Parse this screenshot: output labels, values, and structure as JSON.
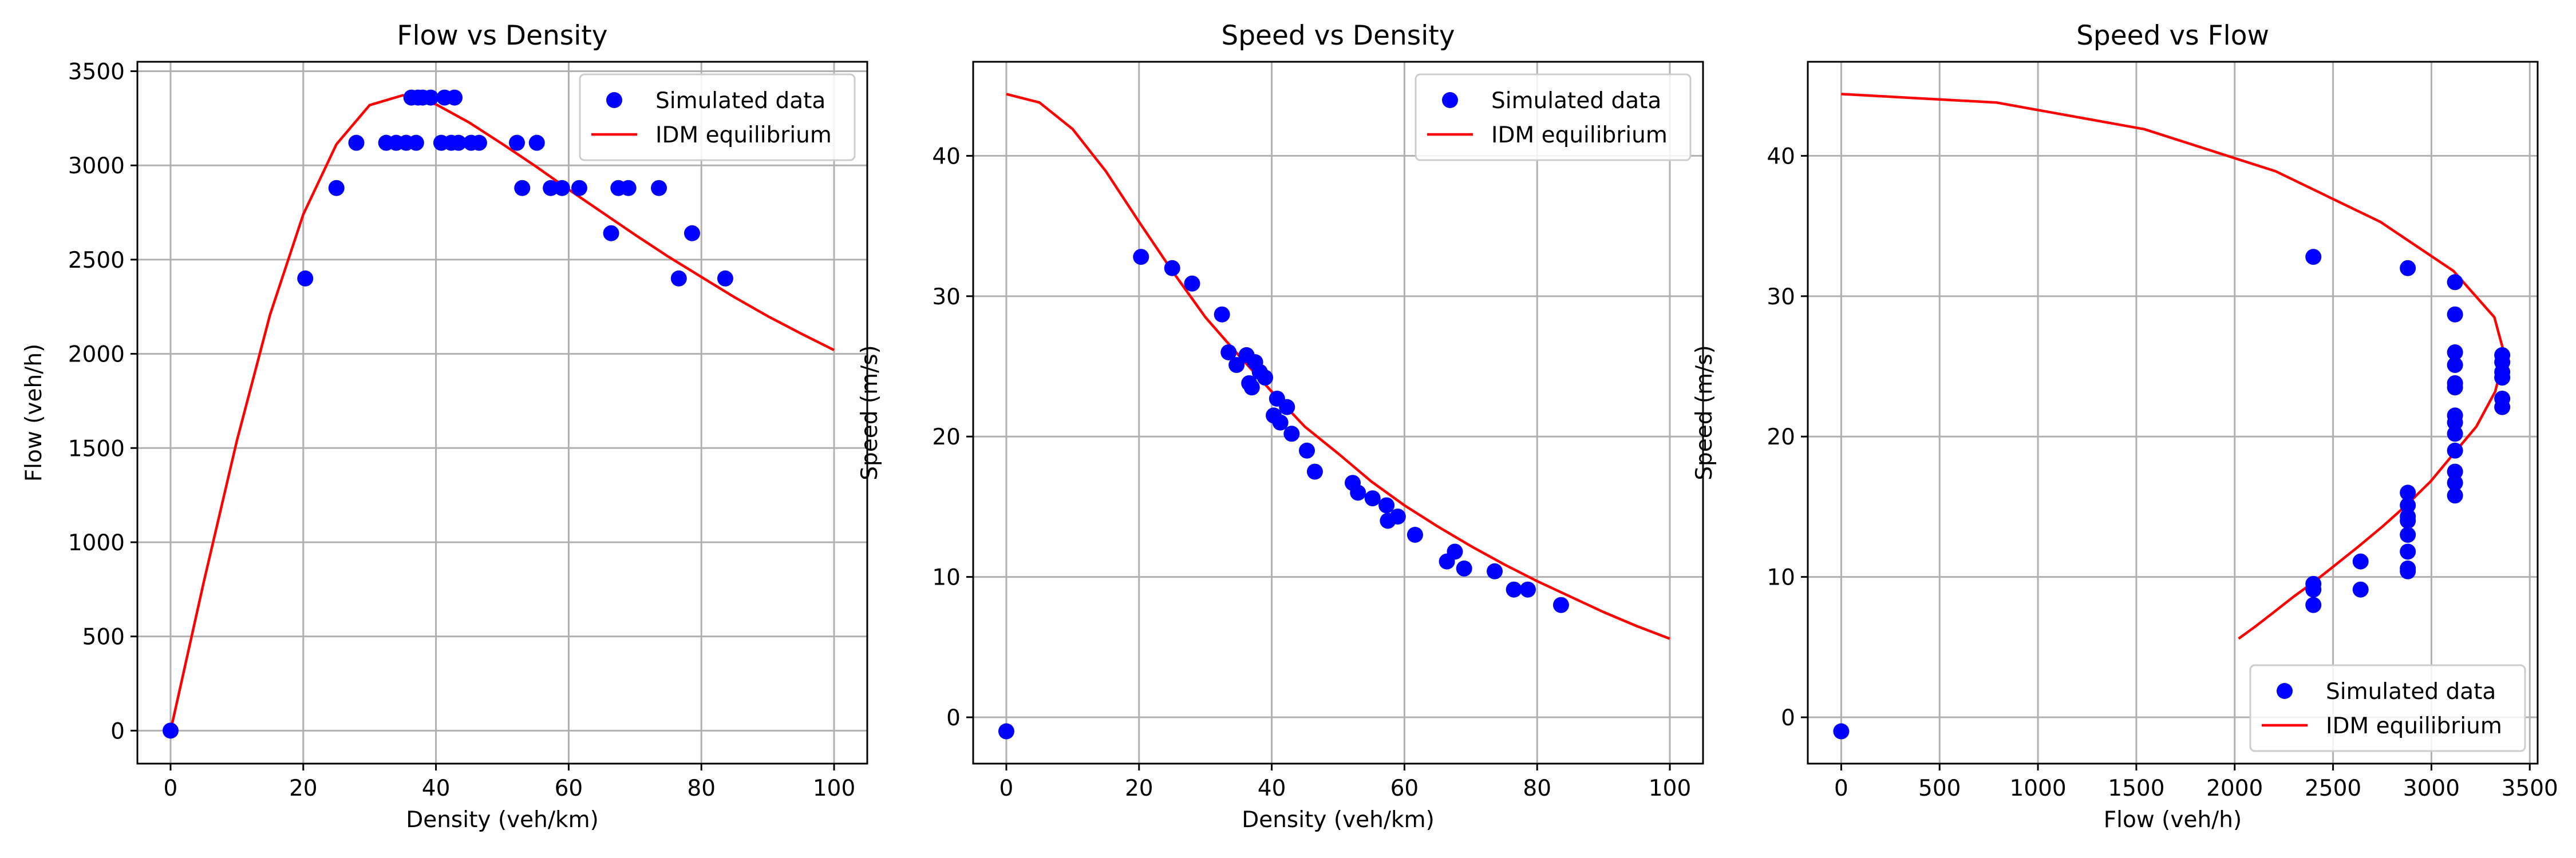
{
  "colors": {
    "scatter": "#0000ff",
    "curve": "#ff0000",
    "grid": "#b0b0b0",
    "legend_border": "#cccccc"
  },
  "chart_data": [
    {
      "type": "scatter",
      "title": "Flow vs Density",
      "xlabel": "Density (veh/km)",
      "ylabel": "Flow (veh/h)",
      "xlim": [
        -5,
        105
      ],
      "ylim": [
        -175,
        3550
      ],
      "xticks": [
        0,
        20,
        40,
        60,
        80,
        100
      ],
      "yticks": [
        0,
        500,
        1000,
        1500,
        2000,
        2500,
        3000,
        3500
      ],
      "grid": true,
      "legend_position": "upper right",
      "series": [
        {
          "name": "Simulated data",
          "kind": "scatter",
          "points": [
            [
              0,
              0
            ],
            [
              20.3,
              2400
            ],
            [
              25,
              2880
            ],
            [
              28,
              3120
            ],
            [
              32.5,
              3120
            ],
            [
              34,
              3120
            ],
            [
              35.5,
              3120
            ],
            [
              36.3,
              3360
            ],
            [
              37,
              3120
            ],
            [
              37.3,
              3360
            ],
            [
              38,
              3360
            ],
            [
              39.2,
              3360
            ],
            [
              40.8,
              3120
            ],
            [
              41.3,
              3360
            ],
            [
              42.3,
              3120
            ],
            [
              42.8,
              3360
            ],
            [
              43.4,
              3120
            ],
            [
              45.3,
              3120
            ],
            [
              46.5,
              3120
            ],
            [
              52.2,
              3120
            ],
            [
              53,
              2880
            ],
            [
              55.2,
              3120
            ],
            [
              57.3,
              2880
            ],
            [
              59,
              2880
            ],
            [
              61.6,
              2880
            ],
            [
              66.4,
              2640
            ],
            [
              67.5,
              2880
            ],
            [
              69,
              2880
            ],
            [
              73.6,
              2880
            ],
            [
              76.6,
              2400
            ],
            [
              78.6,
              2640
            ],
            [
              83.6,
              2400
            ]
          ]
        },
        {
          "name": "IDM equilibrium",
          "kind": "line",
          "points": [
            [
              0,
              0
            ],
            [
              5,
              788
            ],
            [
              10,
              1540
            ],
            [
              15,
              2208
            ],
            [
              20,
              2740
            ],
            [
              25,
              3112
            ],
            [
              30,
              3320
            ],
            [
              35,
              3372
            ],
            [
              40,
              3324
            ],
            [
              45,
              3228
            ],
            [
              50,
              3114
            ],
            [
              55,
              2996
            ],
            [
              60,
              2872
            ],
            [
              65,
              2752
            ],
            [
              70,
              2632
            ],
            [
              75,
              2516
            ],
            [
              80,
              2408
            ],
            [
              85,
              2300
            ],
            [
              90,
              2200
            ],
            [
              95,
              2108
            ],
            [
              100,
              2020
            ]
          ]
        }
      ]
    },
    {
      "type": "scatter",
      "title": "Speed vs Density",
      "xlabel": "Density (veh/km)",
      "ylabel": "Speed (m/s)",
      "xlim": [
        -5,
        105
      ],
      "ylim": [
        -3.3,
        46.7
      ],
      "xticks": [
        0,
        20,
        40,
        60,
        80,
        100
      ],
      "yticks": [
        0,
        10,
        20,
        30,
        40
      ],
      "grid": true,
      "legend_position": "upper right",
      "series": [
        {
          "name": "Simulated data",
          "kind": "scatter",
          "points": [
            [
              0,
              -1
            ],
            [
              20.3,
              32.8
            ],
            [
              25,
              32
            ],
            [
              28,
              30.9
            ],
            [
              32.5,
              28.7
            ],
            [
              33.5,
              26
            ],
            [
              34.7,
              25.1
            ],
            [
              36.2,
              25.8
            ],
            [
              36.6,
              23.8
            ],
            [
              37,
              23.5
            ],
            [
              37.5,
              25.3
            ],
            [
              38.2,
              24.6
            ],
            [
              39,
              24.2
            ],
            [
              40.3,
              21.5
            ],
            [
              40.8,
              22.7
            ],
            [
              41.3,
              21
            ],
            [
              42.3,
              22.1
            ],
            [
              43,
              20.2
            ],
            [
              45.3,
              19
            ],
            [
              46.5,
              17.5
            ],
            [
              52.2,
              16.7
            ],
            [
              53,
              16
            ],
            [
              55.2,
              15.6
            ],
            [
              57.3,
              15.1
            ],
            [
              57.5,
              14
            ],
            [
              59,
              14.3
            ],
            [
              61.6,
              13
            ],
            [
              66.4,
              11.1
            ],
            [
              67.6,
              11.8
            ],
            [
              69,
              10.6
            ],
            [
              73.6,
              10.4
            ],
            [
              76.5,
              9.1
            ],
            [
              78.6,
              9.1
            ],
            [
              83.6,
              8
            ]
          ]
        },
        {
          "name": "IDM equilibrium",
          "kind": "line",
          "points": [
            [
              0,
              44.4
            ],
            [
              5,
              43.8
            ],
            [
              10,
              41.9
            ],
            [
              15,
              38.9
            ],
            [
              20,
              35.3
            ],
            [
              25,
              31.8
            ],
            [
              30,
              28.5
            ],
            [
              35,
              25.8
            ],
            [
              40,
              23.2
            ],
            [
              45,
              20.7
            ],
            [
              50,
              18.8
            ],
            [
              55,
              16.8
            ],
            [
              60,
              15.1
            ],
            [
              65,
              13.6
            ],
            [
              70,
              12.2
            ],
            [
              75,
              10.9
            ],
            [
              80,
              9.7
            ],
            [
              85,
              8.6
            ],
            [
              90,
              7.5
            ],
            [
              95,
              6.5
            ],
            [
              100,
              5.6
            ]
          ]
        }
      ]
    },
    {
      "type": "scatter",
      "title": "Speed vs Flow",
      "xlabel": "Flow (veh/h)",
      "ylabel": "Speed (m/s)",
      "xlim": [
        -170,
        3540
      ],
      "ylim": [
        -3.3,
        46.7
      ],
      "xticks": [
        0,
        500,
        1000,
        1500,
        2000,
        2500,
        3000,
        3500
      ],
      "yticks": [
        0,
        10,
        20,
        30,
        40
      ],
      "grid": true,
      "legend_position": "lower right",
      "series": [
        {
          "name": "Simulated data",
          "kind": "scatter",
          "points": [
            [
              0,
              -1
            ],
            [
              2400,
              32.8
            ],
            [
              2400,
              9.5
            ],
            [
              2400,
              9.1
            ],
            [
              2400,
              8
            ],
            [
              2640,
              11.1
            ],
            [
              2640,
              9.1
            ],
            [
              2880,
              32
            ],
            [
              2880,
              16
            ],
            [
              2880,
              15.1
            ],
            [
              2880,
              14.3
            ],
            [
              2880,
              14
            ],
            [
              2880,
              13
            ],
            [
              2880,
              11.8
            ],
            [
              2880,
              10.6
            ],
            [
              2880,
              10.4
            ],
            [
              3120,
              31
            ],
            [
              3120,
              28.7
            ],
            [
              3120,
              26
            ],
            [
              3120,
              25.1
            ],
            [
              3120,
              23.8
            ],
            [
              3120,
              23.5
            ],
            [
              3120,
              21.5
            ],
            [
              3120,
              21
            ],
            [
              3120,
              20.2
            ],
            [
              3120,
              19
            ],
            [
              3120,
              17.5
            ],
            [
              3120,
              16.7
            ],
            [
              3120,
              15.8
            ],
            [
              3360,
              25.8
            ],
            [
              3360,
              25.3
            ],
            [
              3360,
              24.6
            ],
            [
              3360,
              24.2
            ],
            [
              3360,
              22.7
            ],
            [
              3360,
              22.1
            ]
          ]
        },
        {
          "name": "IDM equilibrium",
          "kind": "line",
          "points": [
            [
              0,
              44.4
            ],
            [
              788,
              43.8
            ],
            [
              1540,
              41.9
            ],
            [
              2208,
              38.9
            ],
            [
              2740,
              35.3
            ],
            [
              3112,
              31.8
            ],
            [
              3320,
              28.5
            ],
            [
              3372,
              25.8
            ],
            [
              3324,
              23.2
            ],
            [
              3228,
              20.7
            ],
            [
              3114,
              18.8
            ],
            [
              2996,
              16.8
            ],
            [
              2872,
              15.1
            ],
            [
              2752,
              13.6
            ],
            [
              2632,
              12.2
            ],
            [
              2516,
              10.9
            ],
            [
              2408,
              9.7
            ],
            [
              2300,
              8.6
            ],
            [
              2200,
              7.5
            ],
            [
              2108,
              6.5
            ],
            [
              2020,
              5.6
            ]
          ]
        }
      ]
    }
  ]
}
